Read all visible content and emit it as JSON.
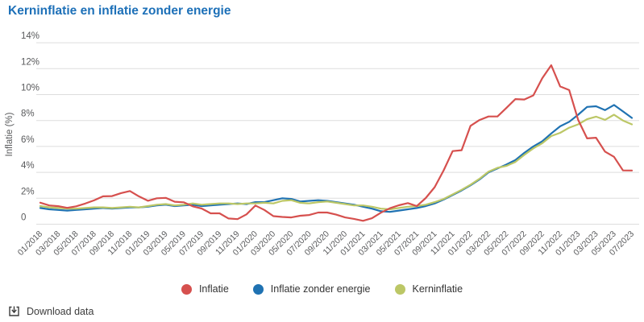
{
  "title": "Kerninflatie en inflatie zonder energie",
  "y_axis": {
    "label": "Inflatie (%)",
    "ticks": [
      "0",
      "2%",
      "4%",
      "6%",
      "8%",
      "10%",
      "12%",
      "14%"
    ]
  },
  "x_ticks": [
    "01/2018",
    "03/2018",
    "05/2018",
    "07/2018",
    "09/2018",
    "11/2018",
    "01/2019",
    "03/2019",
    "05/2019",
    "07/2019",
    "09/2019",
    "11/2019",
    "01/2020",
    "03/2020",
    "05/2020",
    "07/2020",
    "09/2020",
    "11/2020",
    "01/2021",
    "03/2021",
    "05/2021",
    "07/2021",
    "09/2021",
    "11/2021",
    "01/2022",
    "03/2022",
    "05/2022",
    "07/2022",
    "09/2022",
    "11/2022",
    "01/2023",
    "03/2023",
    "05/2023",
    "07/2023"
  ],
  "legend": [
    {
      "label": "Inflatie",
      "color": "#d6504e"
    },
    {
      "label": "Inflatie zonder energie",
      "color": "#1f72b2"
    },
    {
      "label": "Kerninflatie",
      "color": "#bcc766"
    }
  ],
  "download": {
    "label": "Download data"
  },
  "colors": {
    "title": "#1d70b8",
    "grid": "#dddddd",
    "axis_text": "#58595b",
    "legend_text": "#333333"
  },
  "chart_data": {
    "type": "line",
    "title": "Kerninflatie en inflatie zonder energie",
    "xlabel": "",
    "ylabel": "Inflatie (%)",
    "ylim": [
      0,
      14
    ],
    "grid": true,
    "legend_position": "bottom",
    "x_interval": "monthly",
    "categories": [
      "01/2018",
      "02/2018",
      "03/2018",
      "04/2018",
      "05/2018",
      "06/2018",
      "07/2018",
      "08/2018",
      "09/2018",
      "10/2018",
      "11/2018",
      "12/2018",
      "01/2019",
      "02/2019",
      "03/2019",
      "04/2019",
      "05/2019",
      "06/2019",
      "07/2019",
      "08/2019",
      "09/2019",
      "10/2019",
      "11/2019",
      "12/2019",
      "01/2020",
      "02/2020",
      "03/2020",
      "04/2020",
      "05/2020",
      "06/2020",
      "07/2020",
      "08/2020",
      "09/2020",
      "10/2020",
      "11/2020",
      "12/2020",
      "01/2021",
      "02/2021",
      "03/2021",
      "04/2021",
      "05/2021",
      "06/2021",
      "07/2021",
      "08/2021",
      "09/2021",
      "10/2021",
      "11/2021",
      "12/2021",
      "01/2022",
      "02/2022",
      "03/2022",
      "04/2022",
      "05/2022",
      "06/2022",
      "07/2022",
      "08/2022",
      "09/2022",
      "10/2022",
      "11/2022",
      "12/2022",
      "01/2023",
      "02/2023",
      "03/2023",
      "04/2023",
      "05/2023",
      "06/2023",
      "07/2023"
    ],
    "series": [
      {
        "name": "Inflatie",
        "color": "#d6504e",
        "values": [
          1.66,
          1.45,
          1.39,
          1.26,
          1.38,
          1.59,
          1.84,
          2.15,
          2.17,
          2.4,
          2.56,
          2.15,
          1.81,
          2.0,
          2.03,
          1.73,
          1.69,
          1.38,
          1.21,
          0.84,
          0.84,
          0.44,
          0.39,
          0.76,
          1.44,
          1.1,
          0.62,
          0.56,
          0.52,
          0.65,
          0.71,
          0.9,
          0.9,
          0.74,
          0.52,
          0.41,
          0.26,
          0.46,
          0.89,
          1.23,
          1.46,
          1.63,
          1.4,
          2.02,
          2.86,
          4.16,
          5.64,
          5.71,
          7.59,
          8.04,
          8.31,
          8.31,
          8.97,
          9.65,
          9.62,
          9.94,
          11.27,
          12.27,
          10.63,
          10.35,
          8.05,
          6.62,
          6.67,
          5.6,
          5.2,
          4.15,
          4.14
        ]
      },
      {
        "name": "Inflatie zonder energie",
        "color": "#1f72b2",
        "values": [
          1.25,
          1.15,
          1.1,
          1.05,
          1.1,
          1.15,
          1.2,
          1.25,
          1.2,
          1.25,
          1.3,
          1.3,
          1.35,
          1.45,
          1.5,
          1.4,
          1.45,
          1.5,
          1.4,
          1.45,
          1.5,
          1.55,
          1.6,
          1.55,
          1.7,
          1.7,
          1.85,
          2.0,
          1.95,
          1.75,
          1.8,
          1.85,
          1.8,
          1.7,
          1.6,
          1.5,
          1.35,
          1.2,
          1.0,
          0.95,
          1.05,
          1.15,
          1.25,
          1.4,
          1.6,
          1.9,
          2.25,
          2.6,
          3.0,
          3.45,
          4.0,
          4.3,
          4.6,
          4.95,
          5.5,
          6.0,
          6.4,
          7.0,
          7.55,
          7.9,
          8.45,
          9.05,
          9.1,
          8.8,
          9.2,
          8.7,
          8.2
        ]
      },
      {
        "name": "Kerninflatie",
        "color": "#bcc766",
        "values": [
          1.4,
          1.3,
          1.25,
          1.2,
          1.2,
          1.25,
          1.3,
          1.3,
          1.25,
          1.3,
          1.35,
          1.3,
          1.4,
          1.5,
          1.55,
          1.45,
          1.5,
          1.6,
          1.5,
          1.55,
          1.6,
          1.6,
          1.55,
          1.6,
          1.6,
          1.65,
          1.6,
          1.8,
          1.85,
          1.65,
          1.6,
          1.7,
          1.75,
          1.65,
          1.55,
          1.45,
          1.45,
          1.35,
          1.2,
          1.15,
          1.25,
          1.35,
          1.4,
          1.5,
          1.7,
          1.95,
          2.3,
          2.65,
          3.05,
          3.5,
          4.05,
          4.35,
          4.5,
          4.8,
          5.35,
          5.85,
          6.25,
          6.8,
          7.05,
          7.45,
          7.7,
          8.1,
          8.3,
          8.05,
          8.45,
          8.0,
          7.7
        ]
      }
    ]
  }
}
